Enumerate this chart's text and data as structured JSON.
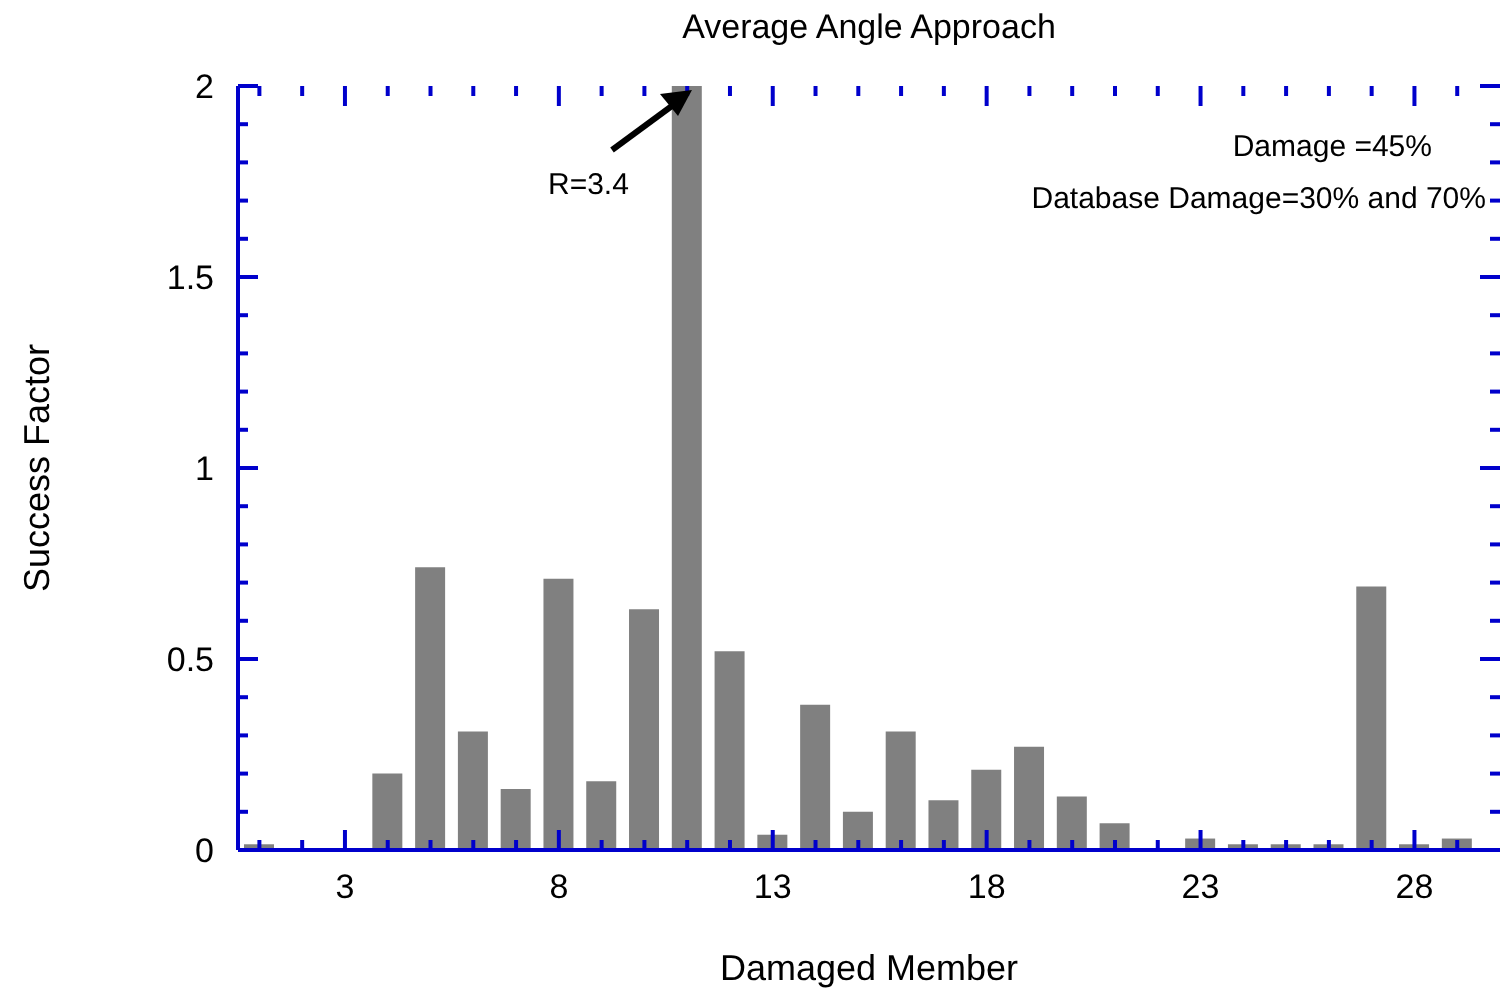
{
  "chart_data": {
    "type": "bar",
    "title": "Average Angle Approach",
    "xlabel": "Damaged Member",
    "ylabel": "Success Factor",
    "x": [
      1,
      2,
      3,
      4,
      5,
      6,
      7,
      8,
      9,
      10,
      11,
      12,
      13,
      14,
      15,
      16,
      17,
      18,
      19,
      20,
      21,
      22,
      23,
      24,
      25,
      26,
      27,
      28,
      29
    ],
    "values": [
      0.015,
      0,
      0,
      0.2,
      0.74,
      0.31,
      0.16,
      0.71,
      0.18,
      0.63,
      2,
      0.52,
      0.04,
      0.38,
      0.1,
      0.31,
      0.13,
      0.21,
      0.27,
      0.14,
      0.07,
      0,
      0.03,
      0.015,
      0.015,
      0.015,
      0.69,
      0.015,
      0.03
    ],
    "color": "#808080",
    "xlim": [
      0.5,
      30
    ],
    "xticks": [
      {
        "value": 1,
        "label": null
      },
      {
        "value": 2,
        "label": null
      },
      3,
      {
        "value": 4,
        "label": null
      },
      {
        "value": 5,
        "label": null
      },
      {
        "value": 6,
        "label": null
      },
      {
        "value": 7,
        "label": null
      },
      8,
      {
        "value": 9,
        "label": null
      },
      {
        "value": 10,
        "label": null
      },
      {
        "value": 11,
        "label": null
      },
      {
        "value": 12,
        "label": null
      },
      13,
      {
        "value": 14,
        "label": null
      },
      {
        "value": 15,
        "label": null
      },
      {
        "value": 16,
        "label": null
      },
      {
        "value": 17,
        "label": null
      },
      18,
      {
        "value": 19,
        "label": null
      },
      {
        "value": 20,
        "label": null
      },
      {
        "value": 21,
        "label": null
      },
      {
        "value": 22,
        "label": null
      },
      23,
      {
        "value": 24,
        "label": null
      },
      {
        "value": 25,
        "label": null
      },
      {
        "value": 26,
        "label": null
      },
      {
        "value": 27,
        "label": null
      },
      28,
      {
        "value": 29,
        "label": null
      }
    ],
    "ylim": [
      0,
      2
    ],
    "yticks": [
      0,
      {
        "value": 0.1,
        "label": null
      },
      {
        "value": 0.2,
        "label": null
      },
      {
        "value": 0.3,
        "label": null
      },
      {
        "value": 0.4,
        "label": null
      },
      0.5,
      {
        "value": 0.6,
        "label": null
      },
      {
        "value": 0.7,
        "label": null
      },
      {
        "value": 0.8,
        "label": null
      },
      {
        "value": 0.9,
        "label": null
      },
      1,
      {
        "value": 1.1,
        "label": null
      },
      {
        "value": 1.2,
        "label": null
      },
      {
        "value": 1.3,
        "label": null
      },
      {
        "value": 1.4,
        "label": null
      },
      1.5,
      {
        "value": 1.6,
        "label": null
      },
      {
        "value": 1.7,
        "label": null
      },
      {
        "value": 1.8,
        "label": null
      },
      {
        "value": 1.9,
        "label": null
      },
      2
    ],
    "grid": false,
    "legend": false,
    "annotations": [
      "R=3.4",
      "Damage =45%",
      "Database Damage=30% and 70%"
    ]
  }
}
